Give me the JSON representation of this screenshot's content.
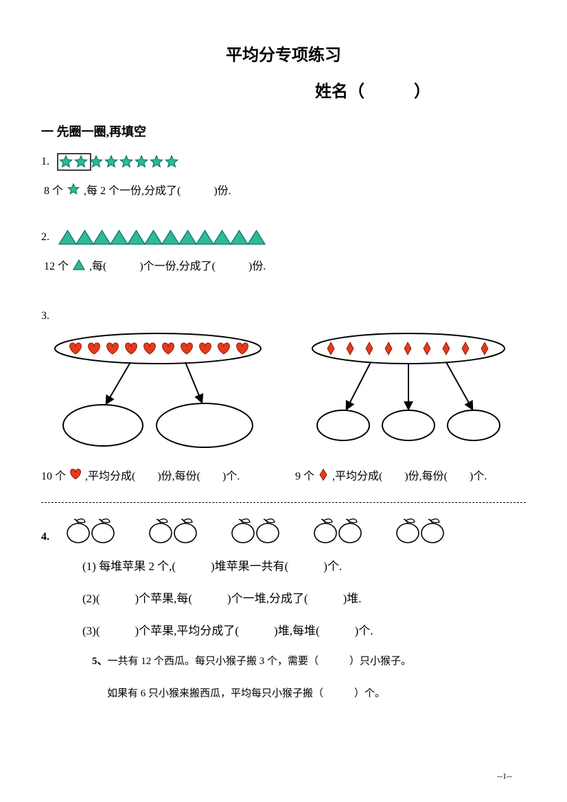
{
  "title": "平均分专项练习",
  "name_label": "姓名（　　　）",
  "section1": "一 先圈一圈,再填空",
  "q1": {
    "num": "1.",
    "stars": {
      "count": 8,
      "fill": "#2fb89a",
      "stroke": "#0a7a5c",
      "boxed_count": 2
    },
    "text_parts": [
      "8 个",
      ",每 2 个一份,分成了(　　　)份."
    ]
  },
  "q2": {
    "num": "2.",
    "triangles": {
      "count": 12,
      "fill": "#2fb89a",
      "stroke": "#0a7a5c"
    },
    "text_parts": [
      "12 个",
      ",每(　　　)个一份,分成了(　　　)份."
    ]
  },
  "q3": {
    "num": "3.",
    "hearts": {
      "count": 10,
      "fill": "#e63a1c",
      "stroke": "#8a1a0a"
    },
    "diamonds": {
      "count": 9,
      "fill": "#e63a1c",
      "stroke": "#8a1a0a"
    },
    "text_left": [
      "10 个",
      ",平均分成(　　)份,每份(　　)个."
    ],
    "text_right": [
      "9 个",
      ",平均分成(　　)份,每份(　　)个."
    ]
  },
  "q4": {
    "num": "4.",
    "apples": {
      "piles": 5,
      "per_pile": 2
    },
    "line1": "(1) 每堆苹果 2 个,(　　　)堆苹果一共有(　　　)个.",
    "line2": "(2)(　　　)个苹果,每(　　　)个一堆,分成了(　　　)堆.",
    "line3": "(3)(　　　)个苹果,平均分成了(　　　)堆,每堆(　　　)个."
  },
  "q5": {
    "num": "5、",
    "line1": "一共有 12 个西瓜。每只小猴子搬 3 个，需要（　　　）只小猴子。",
    "line2": "如果有 6 只小猴来搬西瓜，平均每只小猴子搬（　　　）个。"
  },
  "page_num": "--1--"
}
